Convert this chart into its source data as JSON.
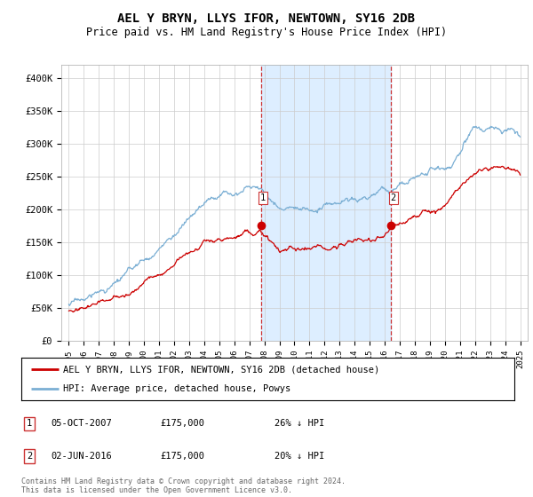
{
  "title": "AEL Y BRYN, LLYS IFOR, NEWTOWN, SY16 2DB",
  "subtitle": "Price paid vs. HM Land Registry's House Price Index (HPI)",
  "ylabel_ticks": [
    "£0",
    "£50K",
    "£100K",
    "£150K",
    "£200K",
    "£250K",
    "£300K",
    "£350K",
    "£400K"
  ],
  "ytick_values": [
    0,
    50000,
    100000,
    150000,
    200000,
    250000,
    300000,
    350000,
    400000
  ],
  "ylim": [
    0,
    420000
  ],
  "xlim_start": 1994.5,
  "xlim_end": 2025.5,
  "xticks": [
    1995,
    1996,
    1997,
    1998,
    1999,
    2000,
    2001,
    2002,
    2003,
    2004,
    2005,
    2006,
    2007,
    2008,
    2009,
    2010,
    2011,
    2012,
    2013,
    2014,
    2015,
    2016,
    2017,
    2018,
    2019,
    2020,
    2021,
    2022,
    2023,
    2024,
    2025
  ],
  "hpi_color": "#7bafd4",
  "red_color": "#cc0000",
  "legend_line1_label": "AEL Y BRYN, LLYS IFOR, NEWTOWN, SY16 2DB (detached house)",
  "legend_line2_label": "HPI: Average price, detached house, Powys",
  "sale1_x": 2007.76,
  "sale1_y": 175000,
  "sale2_x": 2016.42,
  "sale2_y": 175000,
  "shade_color": "#ddeeff",
  "vline_color": "#cc3333",
  "table_rows": [
    {
      "num": "1",
      "date": "05-OCT-2007",
      "price": "£175,000",
      "pct": "26% ↓ HPI"
    },
    {
      "num": "2",
      "date": "02-JUN-2016",
      "price": "£175,000",
      "pct": "20% ↓ HPI"
    }
  ],
  "footer": "Contains HM Land Registry data © Crown copyright and database right 2024.\nThis data is licensed under the Open Government Licence v3.0.",
  "background_color": "#ffffff",
  "grid_color": "#cccccc"
}
